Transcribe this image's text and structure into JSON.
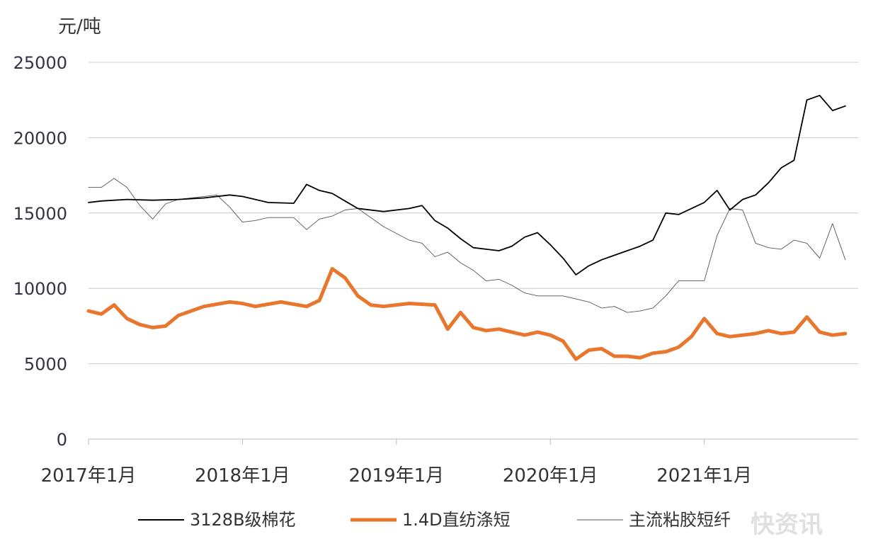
{
  "chart_data": {
    "type": "line",
    "ylabel": "元/吨",
    "ylim": [
      0,
      25000
    ],
    "yticks": [
      0,
      5000,
      10000,
      15000,
      20000,
      25000
    ],
    "x_tick_labels": [
      "2017年1月",
      "2018年1月",
      "2019年1月",
      "2020年1月",
      "2021年1月"
    ],
    "xlim": [
      "2017-01",
      "2021-12"
    ],
    "grid": true,
    "legend_position": "bottom",
    "series": [
      {
        "name": "3128B级棉花",
        "color": "#000000",
        "x": [
          "2017-01",
          "2017-02",
          "2017-04",
          "2017-06",
          "2017-08",
          "2017-10",
          "2017-12",
          "2018-01",
          "2018-03",
          "2018-05",
          "2018-06",
          "2018-07",
          "2018-08",
          "2018-09",
          "2018-10",
          "2018-12",
          "2019-02",
          "2019-03",
          "2019-04",
          "2019-05",
          "2019-06",
          "2019-07",
          "2019-08",
          "2019-09",
          "2019-10",
          "2019-11",
          "2019-12",
          "2020-01",
          "2020-02",
          "2020-03",
          "2020-04",
          "2020-05",
          "2020-06",
          "2020-07",
          "2020-08",
          "2020-09",
          "2020-10",
          "2020-11",
          "2020-12",
          "2021-01",
          "2021-02",
          "2021-03",
          "2021-04",
          "2021-05",
          "2021-06",
          "2021-07",
          "2021-08",
          "2021-09",
          "2021-10",
          "2021-11",
          "2021-12"
        ],
        "values": [
          15700,
          15800,
          15900,
          15850,
          15900,
          16000,
          16200,
          16100,
          15700,
          15650,
          16900,
          16500,
          16300,
          15800,
          15300,
          15100,
          15300,
          15500,
          14500,
          14000,
          13300,
          12700,
          12600,
          12500,
          12800,
          13400,
          13700,
          12900,
          12000,
          10900,
          11500,
          11900,
          12200,
          12500,
          12800,
          13200,
          15000,
          14900,
          15300,
          15700,
          16500,
          15200,
          15900,
          16200,
          17000,
          18000,
          18500,
          22500,
          22800,
          21800,
          22100
        ]
      },
      {
        "name": "1.4D直纺涤短",
        "color": "#e8762d",
        "x": [
          "2017-01",
          "2017-02",
          "2017-03",
          "2017-04",
          "2017-05",
          "2017-06",
          "2017-07",
          "2017-08",
          "2017-10",
          "2017-12",
          "2018-01",
          "2018-02",
          "2018-04",
          "2018-06",
          "2018-07",
          "2018-08",
          "2018-09",
          "2018-10",
          "2018-11",
          "2018-12",
          "2019-02",
          "2019-04",
          "2019-05",
          "2019-06",
          "2019-07",
          "2019-08",
          "2019-09",
          "2019-11",
          "2019-12",
          "2020-01",
          "2020-02",
          "2020-03",
          "2020-04",
          "2020-05",
          "2020-06",
          "2020-07",
          "2020-08",
          "2020-09",
          "2020-10",
          "2020-11",
          "2020-12",
          "2021-01",
          "2021-02",
          "2021-03",
          "2021-04",
          "2021-05",
          "2021-06",
          "2021-07",
          "2021-08",
          "2021-09",
          "2021-10",
          "2021-11",
          "2021-12"
        ],
        "values": [
          8500,
          8300,
          8900,
          8000,
          7600,
          7400,
          7500,
          8200,
          8800,
          9100,
          9000,
          8800,
          9100,
          8800,
          9200,
          11300,
          10700,
          9500,
          8900,
          8800,
          9000,
          8900,
          7300,
          8400,
          7400,
          7200,
          7300,
          6900,
          7100,
          6900,
          6500,
          5300,
          5900,
          6000,
          5500,
          5500,
          5400,
          5700,
          5800,
          6100,
          6800,
          8000,
          7000,
          6800,
          6900,
          7000,
          7200,
          7000,
          7100,
          8100,
          7100,
          6900,
          7000
        ]
      },
      {
        "name": "主流粘胶短纤",
        "color": "#555555",
        "x": [
          "2017-01",
          "2017-02",
          "2017-03",
          "2017-04",
          "2017-05",
          "2017-06",
          "2017-07",
          "2017-08",
          "2017-09",
          "2017-10",
          "2017-11",
          "2017-12",
          "2018-01",
          "2018-02",
          "2018-03",
          "2018-05",
          "2018-06",
          "2018-07",
          "2018-08",
          "2018-09",
          "2018-10",
          "2018-12",
          "2019-02",
          "2019-03",
          "2019-04",
          "2019-05",
          "2019-06",
          "2019-07",
          "2019-08",
          "2019-09",
          "2019-10",
          "2019-11",
          "2019-12",
          "2020-02",
          "2020-03",
          "2020-04",
          "2020-05",
          "2020-06",
          "2020-07",
          "2020-08",
          "2020-09",
          "2020-10",
          "2020-11",
          "2020-12",
          "2021-01",
          "2021-02",
          "2021-03",
          "2021-04",
          "2021-05",
          "2021-06",
          "2021-07",
          "2021-08",
          "2021-09",
          "2021-10",
          "2021-11",
          "2021-12"
        ],
        "values": [
          16700,
          16700,
          17300,
          16700,
          15500,
          14600,
          15600,
          15900,
          16000,
          16100,
          16200,
          15400,
          14400,
          14500,
          14700,
          14700,
          13900,
          14600,
          14800,
          15200,
          15300,
          14100,
          13200,
          13000,
          12100,
          12400,
          11700,
          11200,
          10500,
          10600,
          10200,
          9700,
          9500,
          9500,
          9300,
          9100,
          8700,
          8800,
          8400,
          8500,
          8700,
          9500,
          10500,
          10500,
          10500,
          13500,
          15300,
          15200,
          13000,
          12700,
          12600,
          13200,
          13000,
          12000,
          14300,
          11900
        ]
      }
    ]
  },
  "watermark": "快资讯"
}
